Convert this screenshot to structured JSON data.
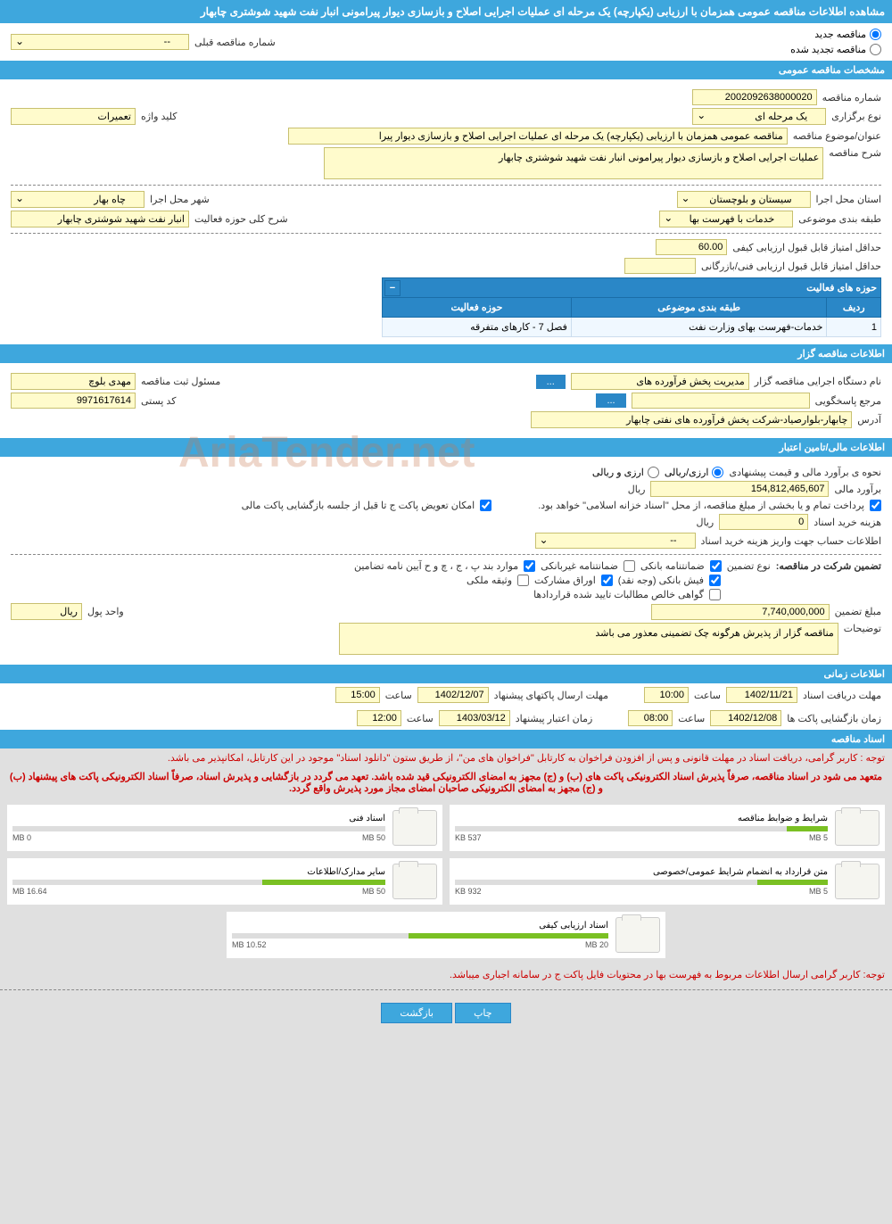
{
  "title": "مشاهده اطلاعات مناقصه عمومی همزمان با ارزیابی (یکپارچه) یک مرحله ای عملیات اجرایی اصلاح و بازسازی دیوار پیرامونی انبار نفت شهید شوشتری چابهار",
  "tender_status": {
    "new_label": "مناقصه جدید",
    "renewed_label": "مناقصه تجدید شده",
    "prev_no_label": "شماره مناقصه قبلی",
    "prev_no_value": "--"
  },
  "sections": {
    "general": {
      "header": "مشخصات مناقصه عمومی",
      "tender_no_label": "شماره مناقصه",
      "tender_no": "2002092638000020",
      "type_label": "نوع برگزاری",
      "type_value": "یک مرحله ای",
      "keyword_label": "کلید واژه",
      "keyword_value": "تعمیرات",
      "subject_label": "عنوان/موضوع مناقصه",
      "subject_value": "مناقصه عمومی همزمان با ارزیابی (یکپارچه) یک مرحله ای عملیات اجرایی اصلاح و بازسازی دیوار پیرا",
      "desc_label": "شرح مناقصه",
      "desc_value": "عملیات اجرایی اصلاح و بازسازی دیوار پیرامونی انبار نفت شهید شوشتری چابهار",
      "province_label": "استان محل اجرا",
      "province_value": "سیستان و بلوچستان",
      "city_label": "شهر محل اجرا",
      "city_value": "چاه بهار",
      "category_label": "طبقه بندی موضوعی",
      "category_value": "خدمات با فهرست بها",
      "activity_scope_label": "شرح کلی حوزه فعالیت",
      "activity_scope_value": "انبار نفت شهید شوشتری چابهار",
      "min_qual_label": "حداقل امتیاز قابل قبول ارزیابی کیفی",
      "min_qual_value": "60.00",
      "min_tech_label": "حداقل امتیاز قابل قبول ارزیابی فنی/بازرگانی",
      "min_tech_value": "",
      "activities_header": "حوزه های فعالیت",
      "activities_cols": [
        "ردیف",
        "طبقه بندی موضوعی",
        "حوزه فعالیت"
      ],
      "activities_rows": [
        [
          "1",
          "خدمات-فهرست بهای وزارت نفت",
          "فصل 7 - کارهای متفرقه"
        ]
      ]
    },
    "authority": {
      "header": "اطلاعات مناقصه گزار",
      "org_label": "نام دستگاه اجرایی مناقصه گزار",
      "org_value": "مدیریت پخش فرآورده های ",
      "resp_label": "مسئول ثبت مناقصه",
      "resp_value": "مهدی بلوچ",
      "ref_label": "مرجع پاسخگویی",
      "ref_value": "",
      "postal_label": "کد پستی",
      "postal_value": "9971617614",
      "address_label": "آدرس",
      "address_value": "چابهار-بلوارصیاد-شرکت پخش فرآورده های نفتی چابهار"
    },
    "financial": {
      "header": "اطلاعات مالی/تامین اعتبار",
      "method_label": "نحوه ی برآورد مالی و قیمت پیشنهادی",
      "method_opt1": "ارزی/ریالی",
      "method_opt2": "ارزی و ریالی",
      "estimate_label": "برآورد مالی",
      "estimate_value": "154,812,465,607",
      "currency": "ریال",
      "payment_note": "پرداخت تمام و یا بخشی از مبلغ مناقصه، از محل \"اسناد خزانه اسلامی\" خواهد بود.",
      "replace_note": "امکان تعویض پاکت ج تا قبل از جلسه بازگشایی پاکت مالی",
      "doc_cost_label": "هزینه خرید اسناد",
      "doc_cost_value": "0",
      "account_label": "اطلاعات حساب جهت واریز هزینه خرید اسناد",
      "account_value": "--",
      "guarantee_label": "تضمین شرکت در مناقصه:",
      "guarantee_type_label": "نوع تضمین",
      "g1": "ضمانتنامه بانکی",
      "g2": "ضمانتنامه غیربانکی",
      "g3": "موارد بند پ ، ج ، چ و ح آیین نامه تضامین",
      "g4": "فیش بانکی (وجه نقد)",
      "g5": "اوراق مشارکت",
      "g6": "وثیقه ملکی",
      "g7": "گواهی خالص مطالبات تایید شده قراردادها",
      "guarantee_amount_label": "مبلغ تضمین",
      "guarantee_amount_value": "7,740,000,000",
      "unit_label": "واحد پول",
      "unit_value": "ریال",
      "notes_label": "توضیحات",
      "notes_value": "مناقصه گزار از پذیرش هرگونه چک تضمینی معذور می باشد"
    },
    "timing": {
      "header": "اطلاعات زمانی",
      "receive_label": "مهلت دریافت اسناد",
      "receive_date": "1402/11/21",
      "receive_time_label": "ساعت",
      "receive_time": "10:00",
      "submit_label": "مهلت ارسال پاکتهای پیشنهاد",
      "submit_date": "1402/12/07",
      "submit_time": "15:00",
      "open_label": "زمان بازگشایی پاکت ها",
      "open_date": "1402/12/08",
      "open_time": "08:00",
      "validity_label": "زمان اعتبار پیشنهاد",
      "validity_date": "1403/03/12",
      "validity_time": "12:00"
    },
    "documents": {
      "header": "اسناد مناقصه",
      "note1": "توجه : کاربر گرامی، دریافت اسناد در مهلت قانونی و پس از افزودن فراخوان به کارتابل \"فراخوان های من\"، از طریق ستون \"دانلود اسناد\" موجود در این کارتابل، امکانپذیر می باشد.",
      "note2": "متعهد می شود در اسناد مناقصه، صرفاً پذیرش اسناد الکترونیکی پاکت های (ب) و (ج) مجهز به امضای الکترونیکی قید شده باشد. تعهد می گردد در بازگشایی و پذیرش اسناد، صرفاً اسناد الکترونیکی پاکت های پیشنهاد (ب) و (ج) مجهز به امضای الکترونیکی صاحبان امضای مجاز مورد پذیرش واقع گردد.",
      "note3": "توجه: کاربر گرامی ارسال اطلاعات مربوط به فهرست بها در محتویات فایل پاکت ج در سامانه اجباری میباشد.",
      "cards": [
        {
          "title": "شرایط و ضوابط مناقصه",
          "used": "537 KB",
          "total": "5 MB",
          "pct": 11
        },
        {
          "title": "اسناد فنی",
          "used": "0 MB",
          "total": "50 MB",
          "pct": 0
        },
        {
          "title": "متن قرارداد به انضمام شرایط عمومی/خصوصی",
          "used": "932 KB",
          "total": "5 MB",
          "pct": 19
        },
        {
          "title": "سایر مدارک/اطلاعات",
          "used": "16.64 MB",
          "total": "50 MB",
          "pct": 33
        },
        {
          "title": "اسناد ارزیابی کیفی",
          "used": "10.52 MB",
          "total": "20 MB",
          "pct": 53
        }
      ]
    }
  },
  "buttons": {
    "print": "چاپ",
    "back": "بازگشت"
  },
  "watermark": "AriaTender.net",
  "colors": {
    "header": "#3ea7dd",
    "field": "#fffbcc",
    "border": "#c8c070",
    "progress": "#7ac023"
  }
}
